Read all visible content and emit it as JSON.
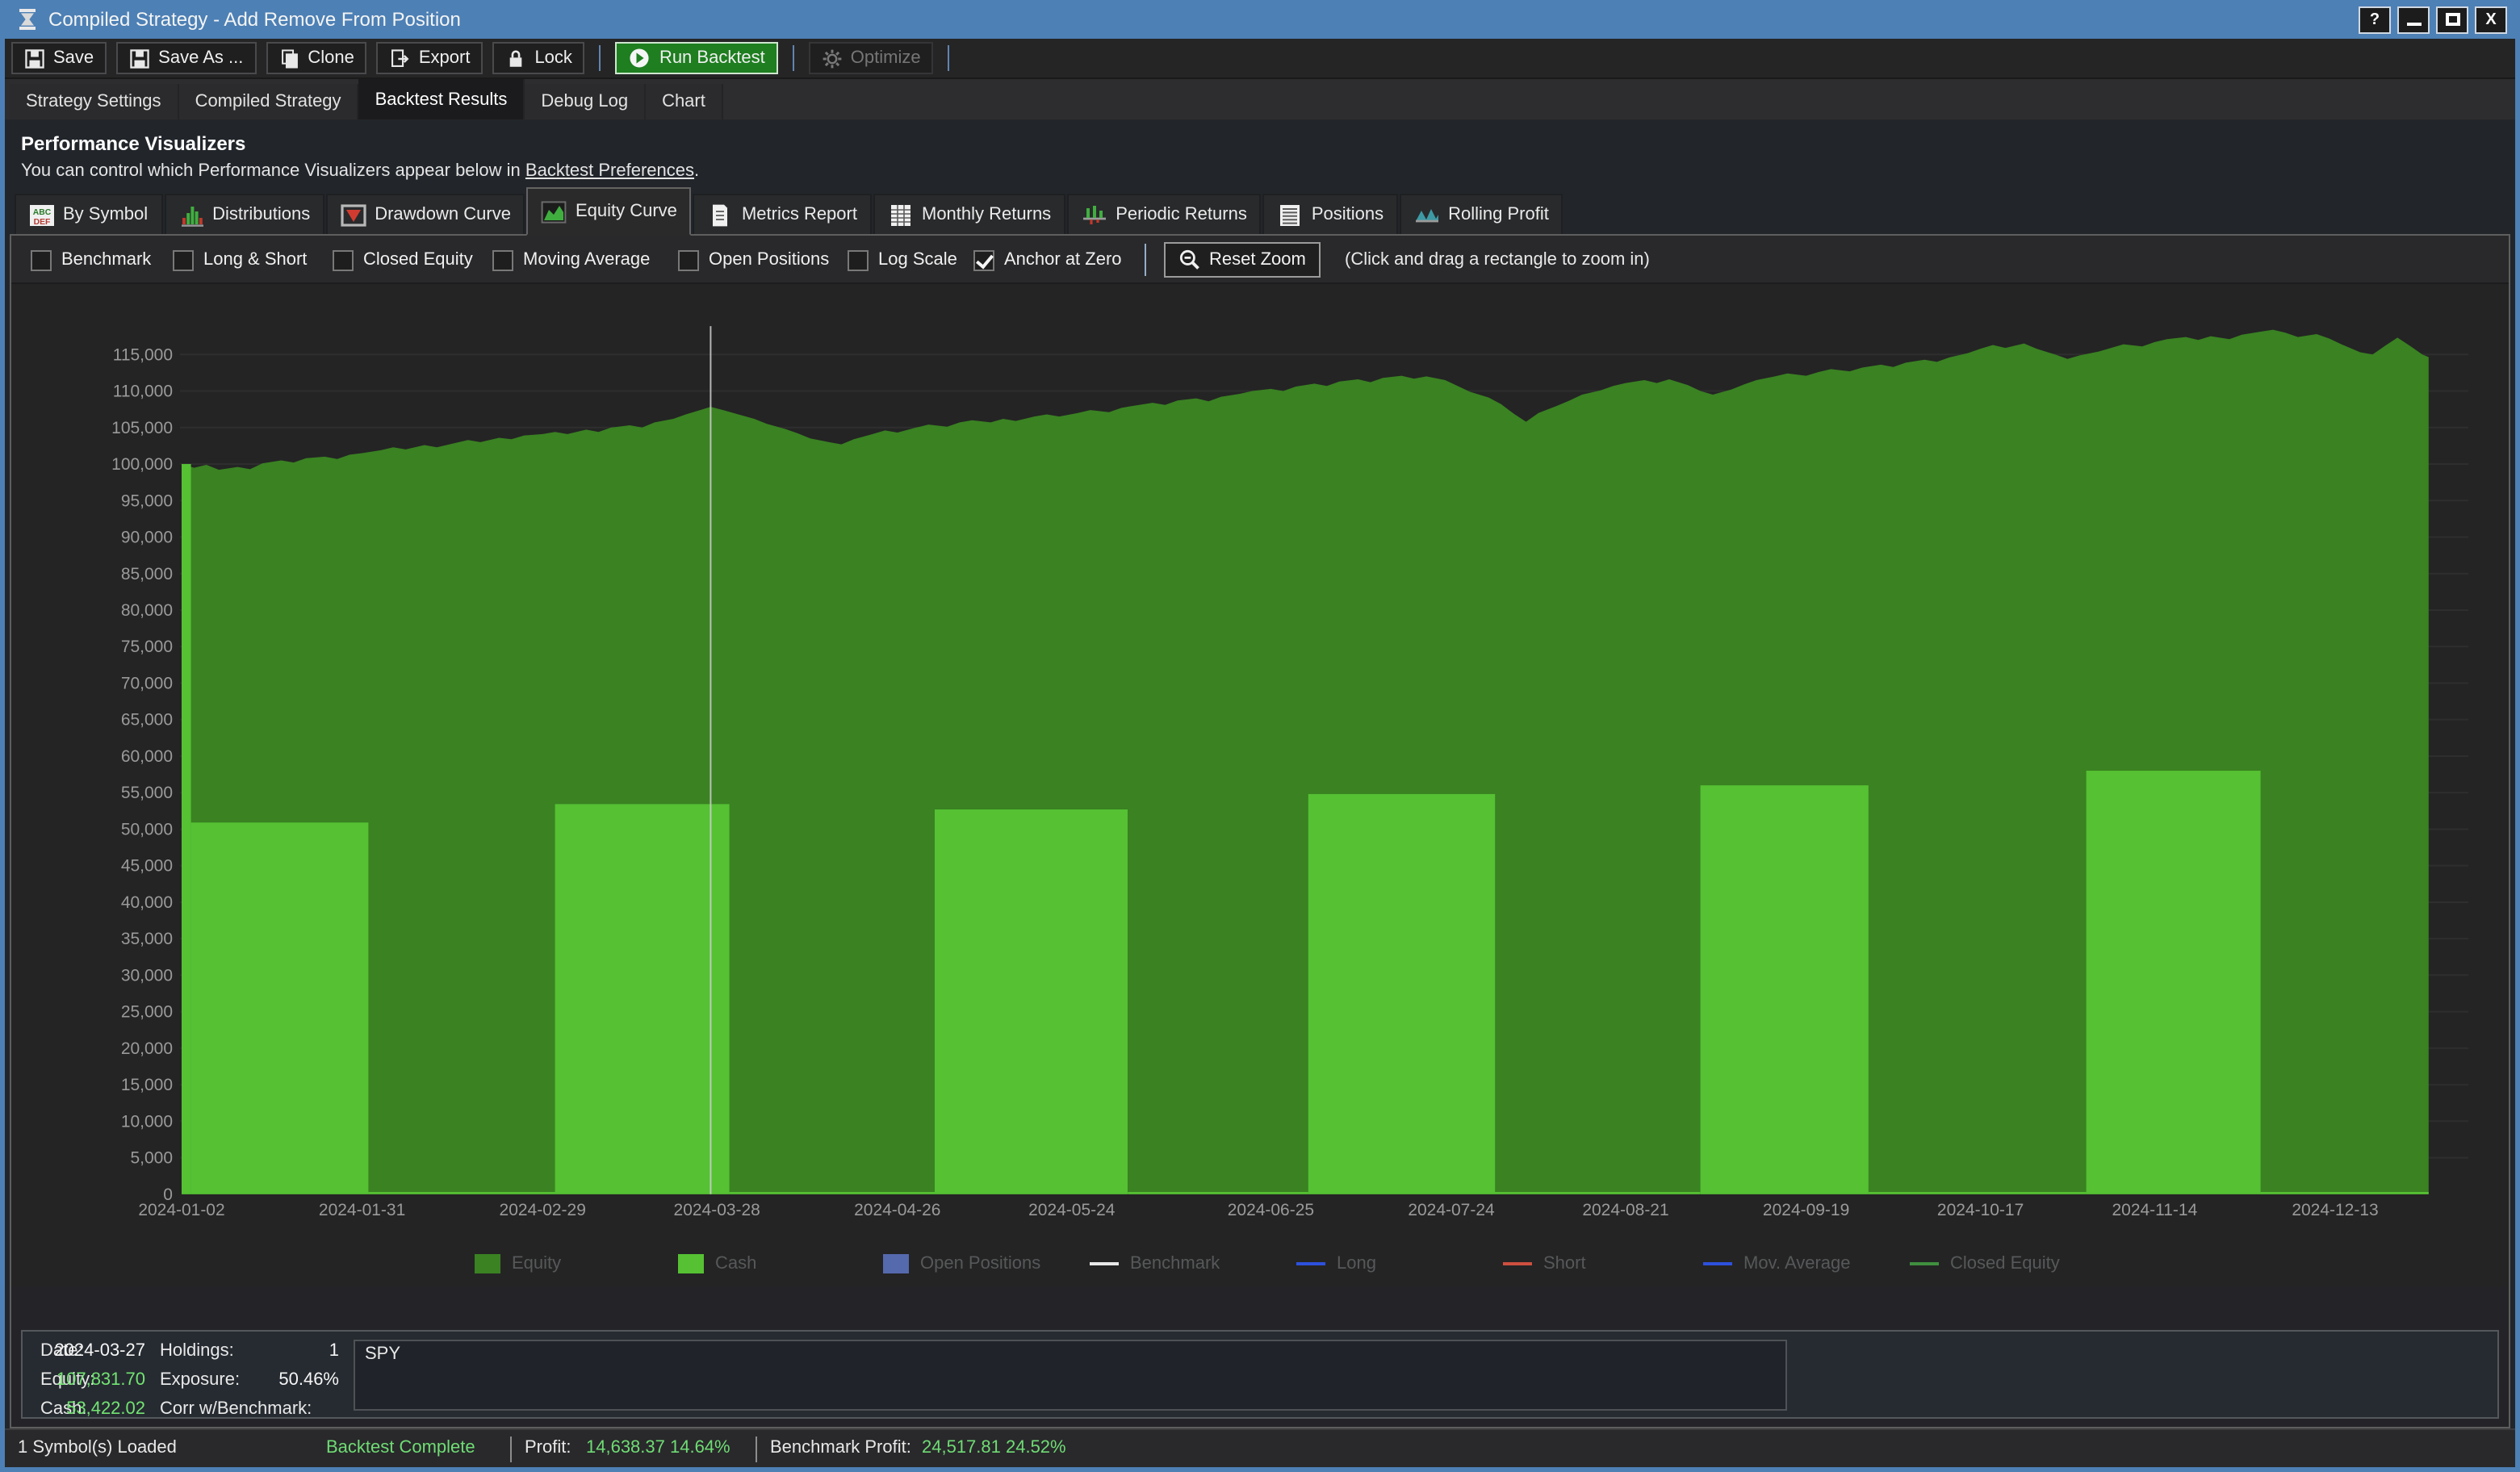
{
  "window": {
    "title": "Compiled Strategy - Add Remove From Position",
    "controls": {
      "help": "?",
      "close": "X"
    }
  },
  "toolbar": {
    "buttons": [
      {
        "label": "Save"
      },
      {
        "label": "Save As ..."
      },
      {
        "label": "Clone"
      },
      {
        "label": "Export"
      },
      {
        "label": "Lock"
      },
      {
        "label": "Run Backtest"
      },
      {
        "label": "Optimize"
      }
    ]
  },
  "main_tabs": [
    {
      "label": "Strategy Settings",
      "active": false
    },
    {
      "label": "Compiled Strategy",
      "active": false
    },
    {
      "label": "Backtest Results",
      "active": true
    },
    {
      "label": "Debug Log",
      "active": false
    },
    {
      "label": "Chart",
      "active": false
    }
  ],
  "pv": {
    "title": "Performance Visualizers",
    "subtitle_prefix": "You can control which Performance Visualizers appear below in ",
    "subtitle_link": "Backtest Preferences",
    "subtitle_suffix": "."
  },
  "sub_tabs": [
    {
      "label": "By Symbol",
      "active": false
    },
    {
      "label": "Distributions",
      "active": false
    },
    {
      "label": "Drawdown Curve",
      "active": false
    },
    {
      "label": "Equity Curve",
      "active": true
    },
    {
      "label": "Metrics Report",
      "active": false
    },
    {
      "label": "Monthly Returns",
      "active": false
    },
    {
      "label": "Periodic Returns",
      "active": false
    },
    {
      "label": "Positions",
      "active": false
    },
    {
      "label": "Rolling Profit",
      "active": false
    }
  ],
  "controls": {
    "checkboxes": [
      {
        "label": "Benchmark",
        "checked": false
      },
      {
        "label": "Long & Short",
        "checked": false
      },
      {
        "label": "Closed Equity",
        "checked": false
      },
      {
        "label": "Moving Average",
        "checked": false
      },
      {
        "label": "Open Positions",
        "checked": false
      },
      {
        "label": "Log Scale",
        "checked": false
      },
      {
        "label": "Anchor at Zero",
        "checked": true
      }
    ],
    "reset_zoom": "Reset Zoom",
    "hint": "(Click and drag a rectangle to zoom in)"
  },
  "chart_data": {
    "type": "area",
    "title": "Equity Curve",
    "xlabel": "",
    "ylabel": "",
    "ylim": [
      0,
      119500
    ],
    "grid": "horizontal every 5000, faint",
    "legend_position": "bottom",
    "anchor_at_zero": true,
    "crosshair_day": 85,
    "crosshair_date": "2024-03-27",
    "x_ticks": [
      {
        "day": 0,
        "label": "2024-01-02"
      },
      {
        "day": 29,
        "label": "2024-01-31"
      },
      {
        "day": 58,
        "label": "2024-02-29"
      },
      {
        "day": 86,
        "label": "2024-03-28"
      },
      {
        "day": 115,
        "label": "2024-04-26"
      },
      {
        "day": 143,
        "label": "2024-05-24"
      },
      {
        "day": 175,
        "label": "2024-06-25"
      },
      {
        "day": 204,
        "label": "2024-07-24"
      },
      {
        "day": 232,
        "label": "2024-08-21"
      },
      {
        "day": 261,
        "label": "2024-09-19"
      },
      {
        "day": 289,
        "label": "2024-10-17"
      },
      {
        "day": 317,
        "label": "2024-11-14"
      },
      {
        "day": 346,
        "label": "2024-12-13"
      }
    ],
    "y_ticks": [
      0,
      5000,
      10000,
      15000,
      20000,
      25000,
      30000,
      35000,
      40000,
      45000,
      50000,
      55000,
      60000,
      65000,
      70000,
      75000,
      80000,
      85000,
      90000,
      95000,
      100000,
      105000,
      110000,
      115000
    ],
    "series": [
      {
        "name": "Equity",
        "type": "area",
        "color": "#3a8222",
        "points": [
          [
            0,
            100000
          ],
          [
            2,
            99500
          ],
          [
            4,
            99900
          ],
          [
            6,
            99200
          ],
          [
            9,
            99600
          ],
          [
            11,
            99300
          ],
          [
            13,
            100100
          ],
          [
            16,
            100500
          ],
          [
            18,
            100200
          ],
          [
            20,
            100800
          ],
          [
            23,
            101000
          ],
          [
            25,
            100700
          ],
          [
            27,
            101300
          ],
          [
            29,
            101500
          ],
          [
            32,
            101900
          ],
          [
            34,
            102300
          ],
          [
            36,
            102000
          ],
          [
            39,
            102600
          ],
          [
            41,
            102300
          ],
          [
            44,
            102900
          ],
          [
            46,
            103300
          ],
          [
            48,
            103000
          ],
          [
            51,
            103600
          ],
          [
            53,
            103400
          ],
          [
            55,
            103900
          ],
          [
            58,
            104100
          ],
          [
            60,
            104400
          ],
          [
            62,
            104100
          ],
          [
            65,
            104700
          ],
          [
            67,
            104400
          ],
          [
            69,
            105000
          ],
          [
            72,
            105300
          ],
          [
            74,
            105000
          ],
          [
            76,
            105700
          ],
          [
            79,
            106200
          ],
          [
            81,
            106800
          ],
          [
            83,
            107300
          ],
          [
            85,
            107832
          ],
          [
            87,
            107400
          ],
          [
            89,
            106900
          ],
          [
            92,
            106200
          ],
          [
            94,
            105500
          ],
          [
            97,
            104800
          ],
          [
            99,
            104200
          ],
          [
            101,
            103500
          ],
          [
            104,
            103000
          ],
          [
            106,
            102700
          ],
          [
            108,
            103400
          ],
          [
            111,
            104100
          ],
          [
            113,
            104600
          ],
          [
            115,
            104300
          ],
          [
            118,
            105000
          ],
          [
            120,
            105400
          ],
          [
            123,
            105100
          ],
          [
            125,
            105700
          ],
          [
            127,
            106000
          ],
          [
            130,
            105700
          ],
          [
            132,
            106200
          ],
          [
            134,
            105900
          ],
          [
            137,
            106500
          ],
          [
            139,
            106800
          ],
          [
            141,
            106500
          ],
          [
            144,
            107000
          ],
          [
            146,
            107400
          ],
          [
            149,
            107100
          ],
          [
            151,
            107700
          ],
          [
            153,
            108000
          ],
          [
            156,
            108400
          ],
          [
            158,
            108100
          ],
          [
            160,
            108700
          ],
          [
            163,
            109000
          ],
          [
            165,
            108600
          ],
          [
            167,
            109200
          ],
          [
            170,
            109600
          ],
          [
            172,
            110000
          ],
          [
            175,
            110300
          ],
          [
            177,
            110000
          ],
          [
            179,
            110600
          ],
          [
            182,
            111000
          ],
          [
            184,
            110700
          ],
          [
            186,
            111300
          ],
          [
            189,
            111600
          ],
          [
            191,
            111200
          ],
          [
            193,
            111800
          ],
          [
            196,
            112100
          ],
          [
            198,
            111700
          ],
          [
            200,
            112000
          ],
          [
            203,
            111500
          ],
          [
            205,
            110700
          ],
          [
            207,
            109900
          ],
          [
            210,
            109100
          ],
          [
            212,
            108200
          ],
          [
            214,
            106900
          ],
          [
            216,
            105800
          ],
          [
            218,
            107000
          ],
          [
            221,
            108000
          ],
          [
            223,
            108700
          ],
          [
            225,
            109500
          ],
          [
            228,
            110100
          ],
          [
            230,
            110700
          ],
          [
            232,
            111100
          ],
          [
            235,
            111500
          ],
          [
            237,
            111100
          ],
          [
            239,
            111600
          ],
          [
            242,
            110800
          ],
          [
            244,
            110000
          ],
          [
            246,
            109500
          ],
          [
            249,
            110200
          ],
          [
            251,
            110900
          ],
          [
            253,
            111500
          ],
          [
            256,
            112000
          ],
          [
            258,
            112400
          ],
          [
            261,
            112100
          ],
          [
            263,
            112600
          ],
          [
            265,
            113000
          ],
          [
            268,
            112700
          ],
          [
            270,
            113200
          ],
          [
            273,
            113600
          ],
          [
            275,
            113300
          ],
          [
            277,
            113900
          ],
          [
            280,
            114300
          ],
          [
            282,
            114000
          ],
          [
            284,
            114600
          ],
          [
            287,
            115200
          ],
          [
            289,
            115800
          ],
          [
            291,
            116300
          ],
          [
            293,
            115900
          ],
          [
            296,
            116500
          ],
          [
            298,
            115800
          ],
          [
            301,
            115000
          ],
          [
            303,
            114400
          ],
          [
            305,
            114900
          ],
          [
            308,
            115400
          ],
          [
            310,
            115900
          ],
          [
            312,
            116400
          ],
          [
            315,
            116100
          ],
          [
            317,
            116700
          ],
          [
            319,
            117100
          ],
          [
            322,
            117400
          ],
          [
            324,
            117000
          ],
          [
            326,
            117500
          ],
          [
            329,
            117100
          ],
          [
            331,
            117700
          ],
          [
            333,
            118000
          ],
          [
            336,
            118400
          ],
          [
            338,
            118000
          ],
          [
            340,
            117400
          ],
          [
            343,
            117800
          ],
          [
            345,
            117200
          ],
          [
            347,
            116400
          ],
          [
            350,
            115300
          ],
          [
            352,
            115000
          ],
          [
            354,
            116200
          ],
          [
            356,
            117300
          ],
          [
            358,
            116200
          ],
          [
            360,
            115000
          ],
          [
            361,
            114638
          ]
        ]
      },
      {
        "name": "Cash",
        "type": "step-area",
        "color": "#55c133",
        "steps": [
          [
            0,
            1.5,
            100000
          ],
          [
            1.5,
            30,
            50900
          ],
          [
            30,
            60,
            300
          ],
          [
            60,
            88,
            53422
          ],
          [
            88,
            121,
            300
          ],
          [
            121,
            152,
            52700
          ],
          [
            152,
            181,
            300
          ],
          [
            181,
            211,
            54800
          ],
          [
            211,
            244,
            300
          ],
          [
            244,
            271,
            56000
          ],
          [
            271,
            306,
            300
          ],
          [
            306,
            334,
            58000
          ],
          [
            334,
            361,
            300
          ]
        ]
      }
    ]
  },
  "legend": [
    {
      "label": "Equity",
      "swatch": "box",
      "color": "#3a8222"
    },
    {
      "label": "Cash",
      "swatch": "box",
      "color": "#55c133"
    },
    {
      "label": "Open Positions",
      "swatch": "box",
      "color": "#5569ad"
    },
    {
      "label": "Benchmark",
      "swatch": "line",
      "color": "#e8e8e8"
    },
    {
      "label": "Long",
      "swatch": "line",
      "color": "#2d50dd"
    },
    {
      "label": "Short",
      "swatch": "line",
      "color": "#cd4f3f"
    },
    {
      "label": "Mov. Average",
      "swatch": "line",
      "color": "#2d50dd"
    },
    {
      "label": "Closed Equity",
      "swatch": "line",
      "color": "#3f8f3f"
    }
  ],
  "info": {
    "col1": [
      {
        "label": "Date:",
        "value": "2024-03-27",
        "green": false
      },
      {
        "label": "Equity:",
        "value": "107,831.70",
        "green": true
      },
      {
        "label": "Cash:",
        "value": "53,422.02",
        "green": true
      }
    ],
    "col2": [
      {
        "label": "Holdings:",
        "value": "1"
      },
      {
        "label": "Exposure:",
        "value": "50.46%"
      },
      {
        "label": "Corr w/Benchmark:",
        "value": ""
      }
    ],
    "symbol": "SPY"
  },
  "status": {
    "symbols": "1 Symbol(s) Loaded",
    "state": "Backtest Complete",
    "profit_label": "Profit:",
    "profit_value": "14,638.37 14.64%",
    "benchmark_label": "Benchmark Profit:",
    "benchmark_value": "24,517.81 24.52%"
  }
}
